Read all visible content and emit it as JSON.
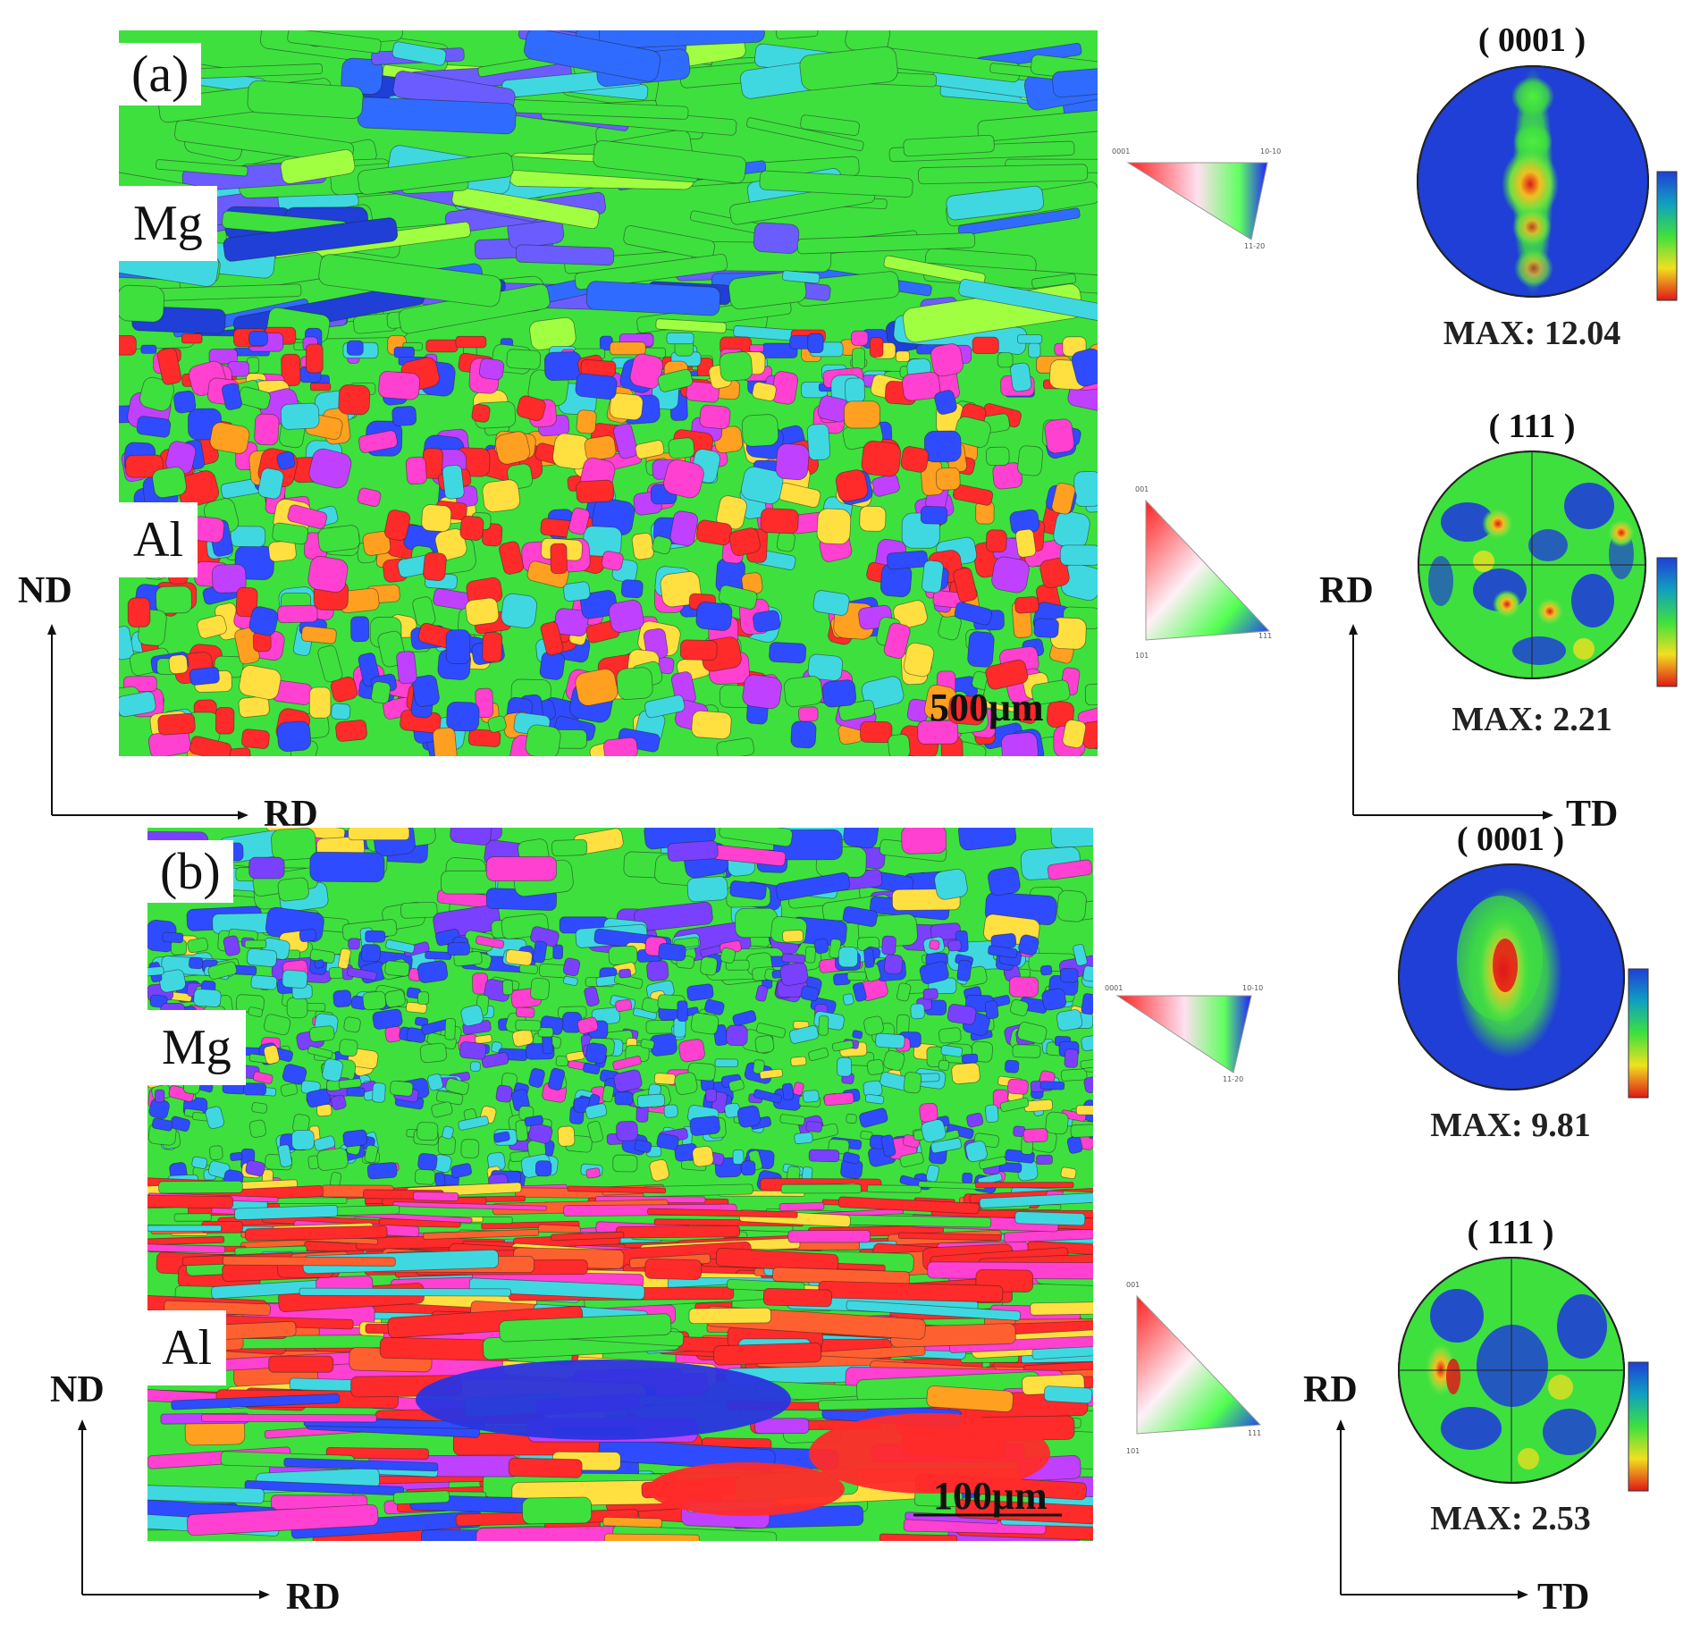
{
  "panel_a": {
    "letter": "(a)",
    "top_phase": "Mg",
    "bottom_phase": "Al",
    "scale_bar": "500μm",
    "axes": {
      "vertical": "ND",
      "horizontal": "RD"
    },
    "pole_figures": {
      "axes": {
        "vertical": "RD",
        "horizontal": "TD"
      },
      "mg": {
        "title": "( 0001 )",
        "max": "MAX: 12.04"
      },
      "al": {
        "title": "( 111 )",
        "max": "MAX: 2.21"
      }
    },
    "ipf_keys": {
      "mg": [
        "0001",
        "10-10",
        "11-20"
      ],
      "al": [
        "001",
        "101",
        "111"
      ]
    }
  },
  "panel_b": {
    "letter": "(b)",
    "top_phase": "Mg",
    "bottom_phase": "Al",
    "scale_bar": "100μm",
    "axes": {
      "vertical": "ND",
      "horizontal": "RD"
    },
    "pole_figures": {
      "axes": {
        "vertical": "RD",
        "horizontal": "TD"
      },
      "mg": {
        "title": "( 0001 )",
        "max": "MAX: 9.81"
      },
      "al": {
        "title": "( 111 )",
        "max": "MAX: 2.53"
      }
    },
    "ipf_keys": {
      "mg": [
        "0001",
        "10-10",
        "11-20"
      ],
      "al": [
        "001",
        "101",
        "111"
      ]
    }
  },
  "colors": {
    "mg_green": "#39e639",
    "al_red": "#ff2a2a",
    "pf_blue": "#1f3fd6",
    "axis_black": "#111111"
  }
}
